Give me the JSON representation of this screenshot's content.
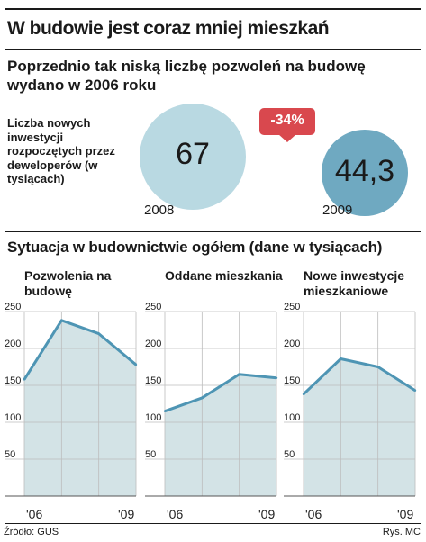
{
  "header": {
    "title": "W budowie jest coraz mniej mieszkań",
    "subtitle": "Poprzednio tak niską liczbę pozwoleń na budowę wydano w 2006 roku"
  },
  "bubbles": {
    "label": "Liczba nowych inwestycji rozpoczętych przez deweloperów (w tysiącach)",
    "change": "-34%",
    "items": [
      {
        "year": "2008",
        "value": 67,
        "value_label": "67",
        "color": "#b9d9e2"
      },
      {
        "year": "2009",
        "value": 44.3,
        "value_label": "44,3",
        "color": "#6fa9c1"
      }
    ]
  },
  "section": {
    "title": "Sytuacja w budownictwie ogółem (dane w tysiącach)"
  },
  "chart_data": [
    {
      "type": "area",
      "title": "Pozwolenia na budowę",
      "x": [
        "2006",
        "2007",
        "2008",
        "2009"
      ],
      "x_tick_labels": [
        "'06",
        "'09"
      ],
      "values": [
        158,
        238,
        220,
        178
      ],
      "ylim": [
        0,
        250
      ],
      "y_ticks": [
        0,
        50,
        100,
        150,
        200,
        250
      ],
      "grid": true
    },
    {
      "type": "area",
      "title": "Oddane mieszkania",
      "x": [
        "2006",
        "2007",
        "2008",
        "2009"
      ],
      "x_tick_labels": [
        "'06",
        "'09"
      ],
      "values": [
        115,
        133,
        165,
        160
      ],
      "ylim": [
        0,
        250
      ],
      "y_ticks": [
        0,
        50,
        100,
        150,
        200,
        250
      ],
      "grid": true
    },
    {
      "type": "area",
      "title": "Nowe inwestycje mieszkaniowe",
      "x": [
        "2006",
        "2007",
        "2008",
        "2009"
      ],
      "x_tick_labels": [
        "'06",
        "'09"
      ],
      "values": [
        138,
        186,
        175,
        143
      ],
      "ylim": [
        0,
        250
      ],
      "y_ticks": [
        0,
        50,
        100,
        150,
        200,
        250
      ],
      "grid": true
    }
  ],
  "colors": {
    "area_fill": "#d3e3e6",
    "line": "#4e95b4",
    "grid": "#bdbdbd",
    "badge": "#d9484e"
  },
  "footer": {
    "source": "Źródło: GUS",
    "credit": "Rys. MC"
  }
}
